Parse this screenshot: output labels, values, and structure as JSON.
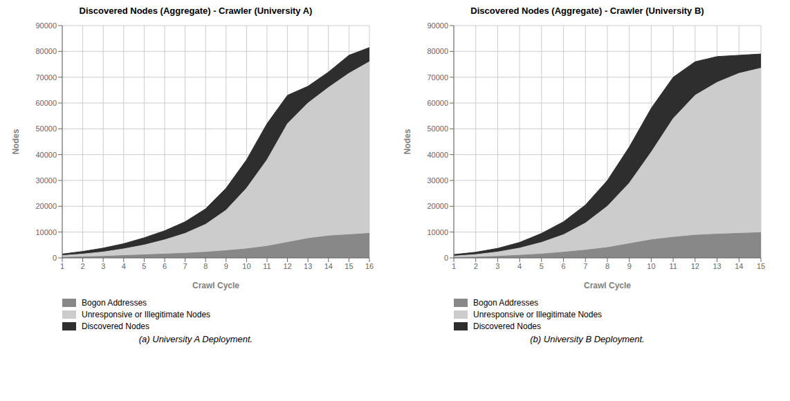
{
  "chart_data": [
    {
      "type": "area",
      "title": "Discovered Nodes (Aggregate) - Crawler (University A)",
      "xlabel": "Crawl Cycle",
      "ylabel": "Nodes",
      "annotations": [
        "(a) University A Deployment."
      ],
      "x": [
        1,
        2,
        3,
        4,
        5,
        6,
        7,
        8,
        9,
        10,
        11,
        12,
        13,
        14,
        15,
        16
      ],
      "xlim": [
        1,
        16
      ],
      "xticks": [
        1,
        2,
        3,
        4,
        5,
        6,
        7,
        8,
        9,
        10,
        11,
        12,
        13,
        14,
        15,
        16
      ],
      "ylim": [
        0,
        90000
      ],
      "yticks": [
        0,
        10000,
        20000,
        30000,
        40000,
        50000,
        60000,
        70000,
        80000,
        90000
      ],
      "grid": true,
      "legend": "bottom",
      "stacked": false,
      "series": [
        {
          "name": "Bogon Addresses",
          "color": "#888888",
          "values": [
            200,
            400,
            600,
            900,
            1200,
            1500,
            1800,
            2200,
            2800,
            3500,
            4500,
            6000,
            7500,
            8500,
            9000,
            9500
          ]
        },
        {
          "name": "Unresponsive or Illegitimate Nodes",
          "color": "#cccccc",
          "values": [
            900,
            1500,
            2300,
            3500,
            5000,
            7000,
            9500,
            13000,
            18500,
            27000,
            38000,
            52000,
            60000,
            66000,
            71500,
            76000
          ]
        },
        {
          "name": "Discovered Nodes",
          "color": "#2e2e2e",
          "values": [
            1500,
            2500,
            3800,
            5500,
            7800,
            10500,
            14000,
            19000,
            27000,
            38000,
            52000,
            63000,
            66500,
            72000,
            78500,
            81500
          ]
        }
      ]
    },
    {
      "type": "area",
      "title": "Discovered Nodes (Aggregate) - Crawler (University B)",
      "xlabel": "Crawl Cycle",
      "ylabel": "Nodes",
      "annotations": [
        "(b) University B Deployment."
      ],
      "x": [
        1,
        2,
        3,
        4,
        5,
        6,
        7,
        8,
        9,
        10,
        11,
        12,
        13,
        14,
        15
      ],
      "xlim": [
        1,
        15
      ],
      "xticks": [
        1,
        2,
        3,
        4,
        5,
        6,
        7,
        8,
        9,
        10,
        11,
        12,
        13,
        14,
        15
      ],
      "ylim": [
        0,
        90000
      ],
      "yticks": [
        0,
        10000,
        20000,
        30000,
        40000,
        50000,
        60000,
        70000,
        80000,
        90000
      ],
      "grid": true,
      "legend": "bottom",
      "stacked": false,
      "series": [
        {
          "name": "Bogon Addresses",
          "color": "#888888",
          "values": [
            150,
            300,
            600,
            1000,
            1500,
            2200,
            3000,
            4000,
            5500,
            7000,
            8000,
            8800,
            9200,
            9500,
            9800
          ]
        },
        {
          "name": "Unresponsive or Illegitimate Nodes",
          "color": "#cccccc",
          "values": [
            700,
            1300,
            2300,
            3800,
            6000,
            9000,
            13500,
            20000,
            29000,
            41000,
            54000,
            63000,
            68000,
            71500,
            73500
          ]
        },
        {
          "name": "Discovered Nodes",
          "color": "#2e2e2e",
          "values": [
            1300,
            2200,
            3700,
            6000,
            9500,
            14000,
            20500,
            30000,
            43000,
            58000,
            70000,
            76000,
            78000,
            78500,
            79000
          ]
        }
      ]
    }
  ]
}
